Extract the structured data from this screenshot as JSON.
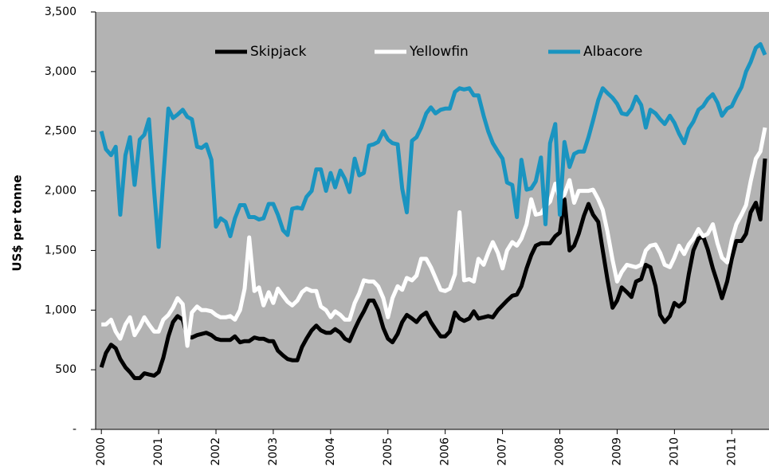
{
  "chart_data": {
    "type": "line",
    "y_label": "US$ per tonne",
    "x": [
      2000,
      2000.08,
      2000.17,
      2000.25,
      2000.33,
      2000.42,
      2000.5,
      2000.58,
      2000.67,
      2000.75,
      2000.83,
      2000.92,
      2001,
      2001.08,
      2001.17,
      2001.25,
      2001.33,
      2001.42,
      2001.5,
      2001.58,
      2001.67,
      2001.75,
      2001.83,
      2001.92,
      2002,
      2002.08,
      2002.17,
      2002.25,
      2002.33,
      2002.42,
      2002.5,
      2002.58,
      2002.67,
      2002.75,
      2002.83,
      2002.92,
      2003,
      2003.08,
      2003.17,
      2003.25,
      2003.33,
      2003.42,
      2003.5,
      2003.58,
      2003.67,
      2003.75,
      2003.83,
      2003.92,
      2004,
      2004.08,
      2004.17,
      2004.25,
      2004.33,
      2004.42,
      2004.5,
      2004.58,
      2004.67,
      2004.75,
      2004.83,
      2004.92,
      2005,
      2005.08,
      2005.17,
      2005.25,
      2005.33,
      2005.42,
      2005.5,
      2005.58,
      2005.67,
      2005.75,
      2005.83,
      2005.92,
      2006,
      2006.08,
      2006.17,
      2006.25,
      2006.33,
      2006.42,
      2006.5,
      2006.58,
      2006.67,
      2006.75,
      2006.83,
      2006.92,
      2007,
      2007.08,
      2007.17,
      2007.25,
      2007.33,
      2007.42,
      2007.5,
      2007.58,
      2007.67,
      2007.75,
      2007.83,
      2007.92,
      2008,
      2008.08,
      2008.17,
      2008.25,
      2008.33,
      2008.42,
      2008.5,
      2008.58,
      2008.67,
      2008.75,
      2008.83,
      2008.92,
      2009,
      2009.08,
      2009.17,
      2009.25,
      2009.33,
      2009.42,
      2009.5,
      2009.58,
      2009.67,
      2009.75,
      2009.83,
      2009.92,
      2010,
      2010.08,
      2010.17,
      2010.25,
      2010.33,
      2010.42,
      2010.5,
      2010.58,
      2010.67,
      2010.75,
      2010.83,
      2010.92,
      2011,
      2011.08,
      2011.17,
      2011.25,
      2011.33,
      2011.42,
      2011.5,
      2011.58
    ],
    "series": [
      {
        "name": "Skipjack",
        "color": "#000000",
        "values": [
          520,
          640,
          710,
          680,
          590,
          520,
          480,
          430,
          430,
          470,
          460,
          450,
          480,
          600,
          780,
          900,
          950,
          920,
          780,
          770,
          790,
          800,
          810,
          790,
          760,
          750,
          750,
          750,
          780,
          730,
          740,
          740,
          770,
          760,
          760,
          740,
          740,
          660,
          620,
          590,
          580,
          580,
          690,
          760,
          830,
          870,
          830,
          810,
          810,
          840,
          810,
          760,
          740,
          840,
          920,
          990,
          1080,
          1080,
          1000,
          850,
          760,
          730,
          800,
          900,
          960,
          930,
          900,
          950,
          980,
          900,
          840,
          780,
          780,
          820,
          980,
          930,
          910,
          930,
          990,
          930,
          940,
          950,
          940,
          1000,
          1040,
          1080,
          1120,
          1130,
          1200,
          1350,
          1460,
          1540,
          1560,
          1560,
          1560,
          1620,
          1650,
          1930,
          1500,
          1540,
          1640,
          1790,
          1890,
          1800,
          1740,
          1500,
          1260,
          1020,
          1080,
          1190,
          1150,
          1110,
          1240,
          1260,
          1380,
          1360,
          1200,
          960,
          900,
          950,
          1060,
          1030,
          1070,
          1300,
          1500,
          1600,
          1620,
          1510,
          1350,
          1230,
          1100,
          1240,
          1430,
          1580,
          1580,
          1640,
          1820,
          1900,
          1760,
          2270
        ]
      },
      {
        "name": "Yellowfin",
        "color": "#ffffff",
        "values": [
          880,
          880,
          920,
          820,
          760,
          880,
          940,
          790,
          860,
          940,
          880,
          820,
          820,
          920,
          960,
          1020,
          1100,
          1050,
          700,
          980,
          1030,
          1000,
          1000,
          990,
          960,
          940,
          940,
          950,
          920,
          1000,
          1180,
          1610,
          1160,
          1190,
          1040,
          1150,
          1060,
          1180,
          1120,
          1070,
          1040,
          1080,
          1150,
          1180,
          1160,
          1160,
          1030,
          1000,
          940,
          990,
          960,
          920,
          920,
          1060,
          1140,
          1250,
          1240,
          1240,
          1200,
          1100,
          940,
          1100,
          1200,
          1170,
          1270,
          1250,
          1290,
          1430,
          1430,
          1360,
          1270,
          1170,
          1160,
          1180,
          1300,
          1820,
          1250,
          1260,
          1240,
          1430,
          1380,
          1480,
          1570,
          1480,
          1350,
          1500,
          1570,
          1540,
          1600,
          1720,
          1930,
          1800,
          1810,
          1870,
          1910,
          2060,
          1930,
          1970,
          2090,
          1900,
          2000,
          2000,
          2000,
          2010,
          1930,
          1840,
          1660,
          1420,
          1240,
          1320,
          1380,
          1370,
          1360,
          1380,
          1500,
          1540,
          1550,
          1480,
          1380,
          1360,
          1440,
          1540,
          1470,
          1550,
          1600,
          1680,
          1620,
          1640,
          1720,
          1560,
          1440,
          1400,
          1590,
          1720,
          1800,
          1880,
          2080,
          2270,
          2330,
          2530
        ]
      },
      {
        "name": "Albacore",
        "color": "#1a94c0",
        "values": [
          2500,
          2350,
          2300,
          2370,
          1800,
          2300,
          2450,
          2050,
          2430,
          2470,
          2600,
          2000,
          1530,
          2100,
          2690,
          2610,
          2640,
          2680,
          2620,
          2600,
          2370,
          2360,
          2390,
          2260,
          1700,
          1770,
          1740,
          1620,
          1770,
          1880,
          1880,
          1780,
          1780,
          1760,
          1770,
          1890,
          1890,
          1800,
          1670,
          1630,
          1850,
          1860,
          1850,
          1950,
          2000,
          2180,
          2180,
          2000,
          2150,
          2030,
          2170,
          2100,
          1990,
          2270,
          2130,
          2150,
          2380,
          2390,
          2410,
          2500,
          2430,
          2400,
          2390,
          2020,
          1820,
          2420,
          2450,
          2530,
          2650,
          2700,
          2650,
          2680,
          2690,
          2690,
          2830,
          2860,
          2850,
          2860,
          2800,
          2800,
          2630,
          2500,
          2400,
          2330,
          2270,
          2070,
          2050,
          1780,
          2260,
          2010,
          2020,
          2080,
          2280,
          1720,
          2400,
          2560,
          1800,
          2410,
          2200,
          2310,
          2330,
          2330,
          2450,
          2590,
          2760,
          2860,
          2820,
          2780,
          2730,
          2650,
          2640,
          2690,
          2790,
          2720,
          2530,
          2680,
          2650,
          2600,
          2560,
          2630,
          2570,
          2480,
          2400,
          2520,
          2580,
          2680,
          2710,
          2770,
          2810,
          2740,
          2630,
          2690,
          2710,
          2790,
          2870,
          3000,
          3080,
          3200,
          3230,
          3140
        ]
      }
    ],
    "xlim": [
      1999.9,
      2011.65
    ],
    "xticks": [
      2000,
      2001,
      2002,
      2003,
      2004,
      2005,
      2006,
      2007,
      2008,
      2009,
      2010,
      2011
    ],
    "ylim": [
      0,
      3500
    ],
    "yticks": [
      {
        "value": 0,
        "label": "-"
      },
      500,
      {
        "value": 1000,
        "label": "1,000"
      },
      {
        "value": 1500,
        "label": "1,500"
      },
      {
        "value": 2000,
        "label": "2,000"
      },
      {
        "value": 2500,
        "label": "2,500"
      },
      {
        "value": 3000,
        "label": "3,000"
      },
      {
        "value": 3500,
        "label": "3,500"
      }
    ],
    "background": "#b3b3b3",
    "legend": "top"
  }
}
